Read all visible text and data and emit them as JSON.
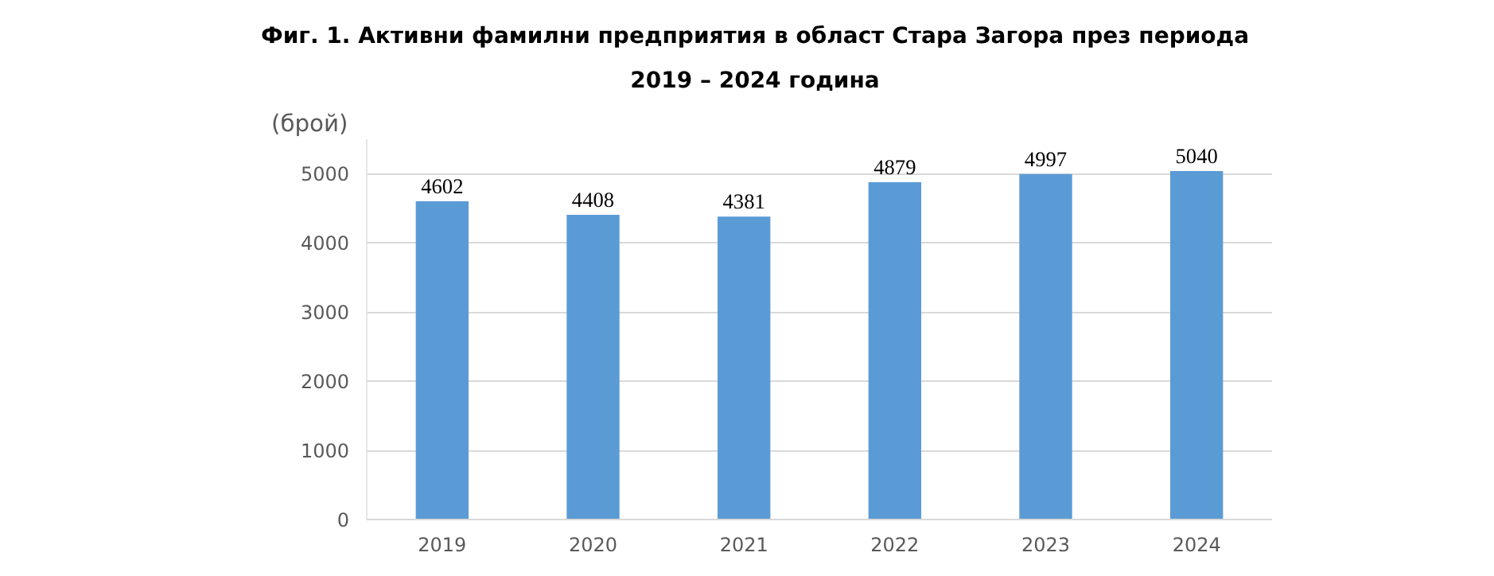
{
  "chart_data": {
    "type": "bar",
    "title": "Фиг. 1. Активни фамилни предприятия в област Стара Загора през периода 2019 – 2024 година",
    "ylabel": "(брой)",
    "categories": [
      "2019",
      "2020",
      "2021",
      "2022",
      "2023",
      "2024"
    ],
    "values": [
      4602,
      4408,
      4381,
      4879,
      4997,
      5040
    ],
    "color": "#5b9bd5",
    "ylim": [
      0,
      5500
    ],
    "yticks": [
      0,
      1000,
      2000,
      3000,
      4000,
      5000
    ],
    "grid": "y",
    "data_labels": true
  }
}
